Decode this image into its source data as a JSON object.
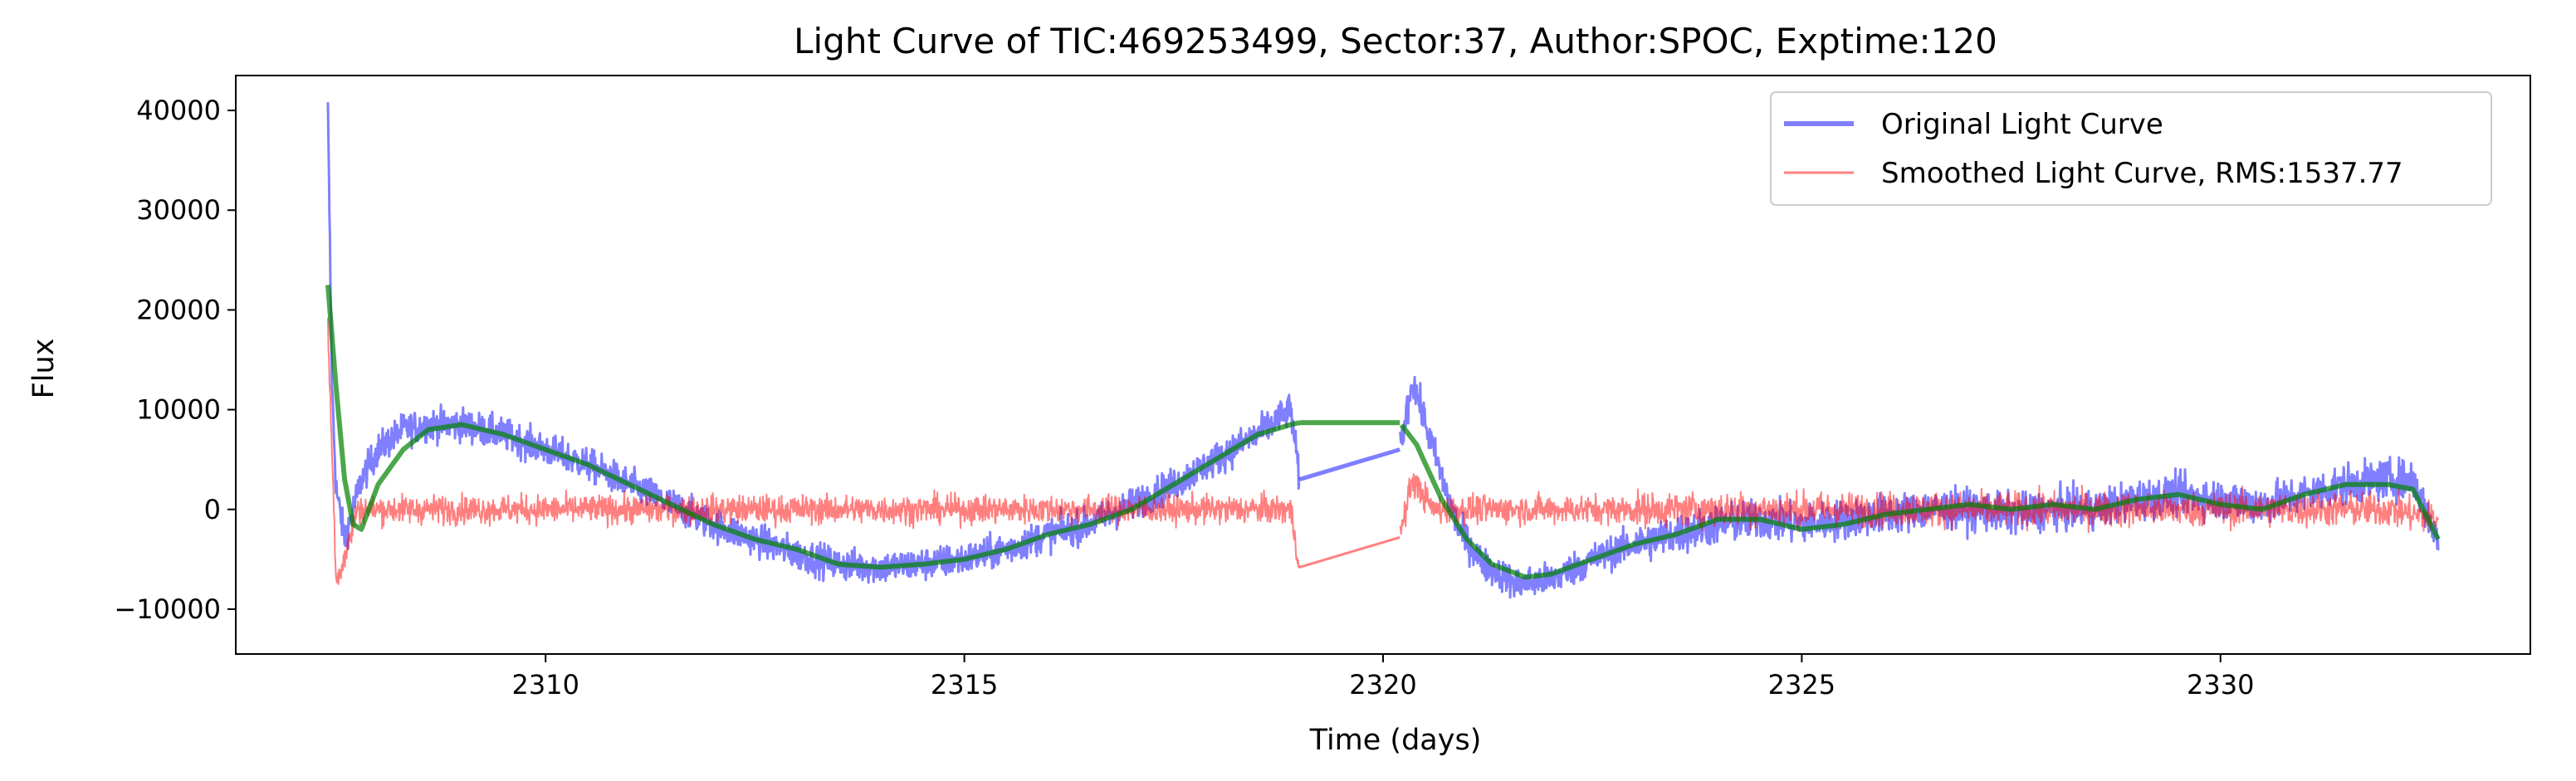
{
  "chart_data": {
    "type": "line",
    "title": "Light Curve of TIC:469253499, Sector:37, Author:SPOC, Exptime:120",
    "xlabel": "Time (days)",
    "ylabel": "Flux",
    "xlim": [
      2306.3,
      2333.7
    ],
    "ylim": [
      -14500,
      43500
    ],
    "xticks": [
      2310,
      2315,
      2320,
      2325,
      2330
    ],
    "xtick_labels": [
      "2310",
      "2315",
      "2320",
      "2325",
      "2330"
    ],
    "yticks": [
      -10000,
      0,
      10000,
      20000,
      30000,
      40000
    ],
    "ytick_labels": [
      "−10000",
      "0",
      "10000",
      "20000",
      "30000",
      "40000"
    ],
    "grid": false,
    "legend_position": "top-right",
    "gap": [
      2319.0,
      2320.2
    ],
    "series": [
      {
        "name": "Original Light Curve",
        "color": "#0000ff",
        "alpha": 0.5,
        "role": "original",
        "noise": 1500,
        "x": [
          2307.4,
          2307.45,
          2307.5,
          2307.6,
          2307.8,
          2308.0,
          2308.3,
          2308.6,
          2309.0,
          2309.5,
          2310.0,
          2310.5,
          2311.0,
          2311.5,
          2312.0,
          2312.5,
          2313.0,
          2313.5,
          2314.0,
          2314.5,
          2315.0,
          2315.5,
          2316.0,
          2316.5,
          2317.0,
          2317.5,
          2318.0,
          2318.5,
          2318.9,
          2319.0,
          2320.2,
          2320.35,
          2320.6,
          2320.9,
          2321.2,
          2321.6,
          2322.0,
          2322.5,
          2323.0,
          2323.5,
          2324.0,
          2324.5,
          2325.0,
          2325.5,
          2326.0,
          2326.5,
          2327.0,
          2327.5,
          2328.0,
          2328.5,
          2329.0,
          2329.5,
          2330.0,
          2330.5,
          2331.0,
          2331.5,
          2332.0,
          2332.3,
          2332.6
        ],
        "y": [
          40000,
          12000,
          2000,
          -3000,
          3000,
          6000,
          8000,
          8500,
          8500,
          7500,
          6000,
          4500,
          2500,
          500,
          -1500,
          -3000,
          -4500,
          -5500,
          -5800,
          -5500,
          -5000,
          -4000,
          -2500,
          -1500,
          500,
          2500,
          5000,
          7500,
          10000,
          3000,
          6000,
          13000,
          6000,
          -2000,
          -5500,
          -7500,
          -7000,
          -5000,
          -3500,
          -2500,
          -1500,
          -1000,
          -1500,
          -1000,
          -500,
          0,
          0,
          -500,
          0,
          0,
          1000,
          1500,
          1000,
          500,
          1500,
          2500,
          3000,
          3000,
          -3000
        ]
      },
      {
        "name": "Smoothed Light Curve, RMS:1537.77",
        "color": "#ff0000",
        "alpha": 0.5,
        "role": "residual",
        "noise": 1300,
        "x": [
          2307.4,
          2307.5,
          2307.6,
          2307.75,
          2308.0,
          2309.0,
          2310.0,
          2311.0,
          2312.0,
          2313.0,
          2314.0,
          2315.0,
          2316.0,
          2317.0,
          2318.0,
          2318.9,
          2319.0,
          2320.2,
          2320.35,
          2320.6,
          2321.0,
          2322.0,
          2323.0,
          2324.0,
          2325.0,
          2326.0,
          2327.0,
          2328.0,
          2329.0,
          2330.0,
          2331.0,
          2332.0,
          2332.6
        ],
        "y": [
          18000,
          -7000,
          -5000,
          0,
          0,
          0,
          0,
          0,
          0,
          0,
          0,
          0,
          0,
          0,
          0,
          0,
          -5800,
          -2800,
          3000,
          0,
          0,
          0,
          0,
          0,
          0,
          0,
          0,
          0,
          0,
          0,
          0,
          0,
          -1000
        ]
      },
      {
        "name": "",
        "color": "#008000",
        "alpha": 0.7,
        "role": "trend",
        "noise": 0,
        "x": [
          2307.4,
          2307.5,
          2307.6,
          2307.7,
          2307.8,
          2308.0,
          2308.3,
          2308.6,
          2309.0,
          2309.5,
          2310.0,
          2310.5,
          2311.0,
          2311.5,
          2312.0,
          2312.5,
          2313.0,
          2313.5,
          2314.0,
          2314.5,
          2315.0,
          2315.5,
          2316.0,
          2316.5,
          2317.0,
          2317.5,
          2318.0,
          2318.5,
          2318.9,
          2319.0,
          2320.2,
          2320.4,
          2320.7,
          2321.0,
          2321.3,
          2321.7,
          2322.0,
          2322.5,
          2323.0,
          2323.5,
          2324.0,
          2324.5,
          2325.0,
          2325.5,
          2326.0,
          2326.5,
          2327.0,
          2327.5,
          2328.0,
          2328.5,
          2329.0,
          2329.5,
          2330.0,
          2330.5,
          2331.0,
          2331.5,
          2332.0,
          2332.3,
          2332.6
        ],
        "y": [
          22500,
          12000,
          3000,
          -1500,
          -2000,
          2500,
          6000,
          8000,
          8500,
          7500,
          6000,
          4500,
          2500,
          500,
          -1500,
          -3000,
          -4000,
          -5500,
          -5800,
          -5500,
          -5000,
          -4000,
          -2500,
          -1500,
          0,
          2500,
          5000,
          7500,
          8500,
          8700,
          8700,
          6500,
          1000,
          -3000,
          -5500,
          -6800,
          -6500,
          -5000,
          -3500,
          -2500,
          -1000,
          -1000,
          -2000,
          -1500,
          -500,
          0,
          500,
          0,
          500,
          0,
          1000,
          1500,
          500,
          0,
          1500,
          2500,
          2500,
          2000,
          -3000
        ]
      }
    ],
    "legend": [
      {
        "label": "Original Light Curve",
        "color": "#0000ff",
        "alpha": 0.5,
        "line": "thick"
      },
      {
        "label": "Smoothed Light Curve, RMS:1537.77",
        "color": "#ff0000",
        "alpha": 0.5,
        "line": "thin"
      }
    ]
  }
}
